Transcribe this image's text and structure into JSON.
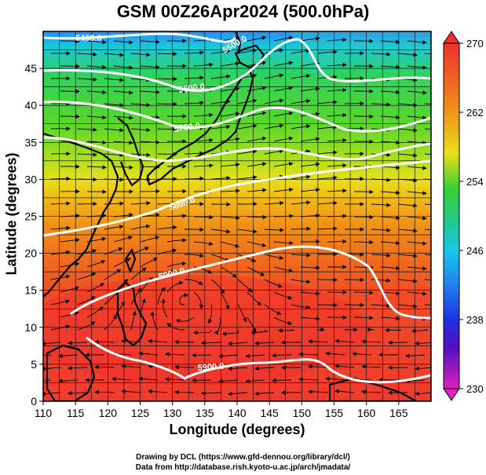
{
  "title": "GSM 00Z26Apr2024 (500.0hPa)",
  "map": {
    "xlabel": "Longitude (degrees)",
    "ylabel": "Latitude  (degrees)",
    "lon_range": [
      110,
      170
    ],
    "lat_range": [
      0,
      50
    ],
    "lon_ticks": [
      "110",
      "115",
      "120",
      "125",
      "130",
      "135",
      "140",
      "145",
      "150",
      "155",
      "160",
      "165"
    ],
    "lat_ticks": [
      "0",
      "5",
      "10",
      "15",
      "20",
      "25",
      "30",
      "35",
      "40",
      "45"
    ],
    "shaded_field_range": [
      230,
      270
    ],
    "colorbar_ticks": [
      "270",
      "262",
      "254",
      "246",
      "238",
      "230"
    ],
    "contour_labels": [
      "5400.0",
      "5500.0",
      "5600.0",
      "5700.0",
      "5800.0",
      "5900.0",
      "5900.0",
      "5900.0"
    ],
    "overlay": "streamlines with arrows, white height contours, black coastlines, lat-lon grid"
  },
  "credits": {
    "line1": "Drawing by DCL (https://www.gfd-dennou.org/library/dcl/)",
    "line2": "Data from http://database.rish.kyoto-u.ac.jp/arch/jmadata/"
  }
}
